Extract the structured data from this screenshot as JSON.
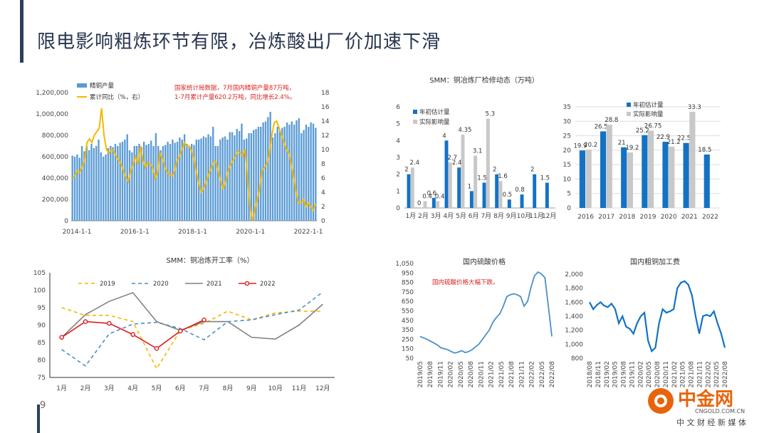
{
  "page": {
    "title": "限电影响粗炼环节有限，冶炼酸出厂价加速下滑",
    "page_number": "9"
  },
  "logo": {
    "name": "中金网",
    "site": "CNGOLD.COM.CN",
    "tagline": "中 文 财 经 新 媒 体",
    "icon": "cngold-logo-icon"
  },
  "colors": {
    "blue": "#5b9bd5",
    "darkblue": "#1372c4",
    "gold": "#f5b800",
    "gray": "#c8c8c8",
    "red": "#e01e1e",
    "line": "#4a90c8"
  },
  "chart_data": [
    {
      "id": "c1",
      "type": "bar+line",
      "title": "",
      "legend": [
        "精铜产量",
        "累计同比（%，右）"
      ],
      "annotation": "国家统计局数据，7月国内精铜产量87万吨，1-7月累计产量620.2万吨，同比增长2.4%。",
      "x_ticks": [
        "2014-1-1",
        "2016-1-1",
        "2018-1-1",
        "2020-1-1",
        "2022-1-1"
      ],
      "y_left_ticks": [
        "0",
        "200,000",
        "400,000",
        "600,000",
        "800,000",
        "1,000,000",
        "1,200,000"
      ],
      "y_right_ticks": [
        "0",
        "2",
        "4",
        "6",
        "8",
        "10",
        "12",
        "14",
        "16",
        "18"
      ],
      "ylim_left": [
        0,
        1200000
      ],
      "ylim_right": [
        0,
        18
      ],
      "bars": [
        610000,
        600000,
        620000,
        590000,
        700000,
        650000,
        700000,
        660000,
        720000,
        680000,
        700000,
        760000,
        640000,
        600000,
        620000,
        680000,
        700000,
        690000,
        720000,
        700000,
        730000,
        740000,
        760000,
        810000,
        660000,
        640000,
        700000,
        700000,
        720000,
        690000,
        740000,
        710000,
        720000,
        750000,
        700000,
        820000,
        700000,
        660000,
        700000,
        710000,
        740000,
        720000,
        760000,
        730000,
        740000,
        780000,
        760000,
        810000,
        720000,
        690000,
        720000,
        710000,
        760000,
        760000,
        770000,
        790000,
        780000,
        810000,
        790000,
        880000,
        700000,
        700000,
        760000,
        780000,
        790000,
        760000,
        830000,
        830000,
        800000,
        860000,
        840000,
        910000,
        760000,
        770000,
        820000,
        820000,
        850000,
        860000,
        880000,
        880000,
        920000,
        930000,
        970000,
        1020000,
        780000,
        820000,
        880000,
        850000,
        870000,
        880000,
        920000,
        900000,
        930000,
        900000,
        940000,
        960000,
        820000,
        850000,
        900000,
        880000,
        920000,
        910000,
        870000
      ],
      "line": [
        6,
        6.3,
        7,
        6.8,
        7.5,
        8.5,
        11,
        11.5,
        11,
        12,
        12.5,
        13,
        15.8,
        12,
        10,
        9.5,
        10,
        9.8,
        9,
        8.5,
        8,
        7,
        6,
        5.5,
        7,
        8,
        9,
        8,
        10.5,
        8.5,
        7.5,
        8.2,
        8,
        7.5,
        6,
        6.8,
        9.5,
        8.8,
        7.5,
        6.8,
        6.5,
        6.2,
        7,
        8.5,
        9,
        10,
        11,
        10.5,
        10.5,
        9.8,
        8.7,
        6.8,
        5.2,
        4,
        4.5,
        5.5,
        6.5,
        7.2,
        8.2,
        8.3,
        7,
        5.5,
        4.5,
        5.5,
        7,
        7.8,
        8.5,
        9,
        9.8,
        9.5,
        9.2,
        10,
        6,
        2,
        0,
        1.5,
        3,
        4.5,
        7,
        7.5,
        8,
        9.5,
        12,
        13.8,
        14,
        13,
        12,
        11,
        10,
        9.5,
        8,
        6,
        4,
        2.5,
        2.5,
        3,
        2,
        2.5,
        2,
        1.5,
        2.4
      ]
    },
    {
      "id": "c2",
      "type": "bar",
      "title": "SMM：铜冶炼厂检修动态（万吨）",
      "series": [
        {
          "name": "年初估计量",
          "values": [
            2,
            0,
            0.6,
            4,
            2.4,
            1,
            1.5,
            2,
            0.5,
            0.8,
            2,
            1.5
          ]
        },
        {
          "name": "实际影响量",
          "values": [
            2.4,
            0.4,
            0.4,
            2.7,
            4.35,
            3.1,
            5.3,
            1.6,
            null,
            null,
            null,
            null
          ]
        }
      ],
      "categories": [
        "1月",
        "2月",
        "3月",
        "4月",
        "5月",
        "6月",
        "7月",
        "8月",
        "9月",
        "10月",
        "11月",
        "12月"
      ],
      "y_ticks": [
        "0",
        "1",
        "2",
        "3",
        "4",
        "5",
        "6"
      ],
      "ylim": [
        0,
        6
      ]
    },
    {
      "id": "c3",
      "type": "bar",
      "title": "",
      "series": [
        {
          "name": "年初估计量",
          "values": [
            19.9,
            26.5,
            21,
            25.2,
            22.9,
            22.5,
            18.5
          ]
        },
        {
          "name": "实际影响量",
          "values": [
            20.2,
            28.8,
            19.2,
            26.75,
            21.2,
            33.3,
            null
          ]
        }
      ],
      "categories": [
        "2016",
        "2017",
        "2018",
        "2019",
        "2020",
        "2021",
        "2022"
      ],
      "y_ticks": [
        "0",
        "5",
        "10",
        "15",
        "20",
        "25",
        "30",
        "35"
      ],
      "ylim": [
        0,
        35
      ]
    },
    {
      "id": "c4",
      "type": "line",
      "title": "SMM：铜冶炼开工率（%）",
      "categories": [
        "1月",
        "2月",
        "3月",
        "4月",
        "5月",
        "6月",
        "7月",
        "8月",
        "9月",
        "10月",
        "11月",
        "12月"
      ],
      "y_ticks": [
        "75",
        "80",
        "85",
        "90",
        "95",
        "100",
        "105"
      ],
      "ylim": [
        75,
        105
      ],
      "series": [
        {
          "name": "2019",
          "values": [
            95,
            92.8,
            92.8,
            91,
            77.5,
            88.5,
            90.5,
            94,
            91.5,
            93.5,
            94,
            94
          ]
        },
        {
          "name": "2020",
          "values": [
            83,
            78.3,
            87.5,
            90.3,
            90.8,
            89,
            85.8,
            91,
            91.5,
            93,
            94.3,
            99.5
          ]
        },
        {
          "name": "2021",
          "values": [
            86.5,
            93,
            96.8,
            99.3,
            91,
            88.5,
            91,
            91,
            86.5,
            86,
            90,
            96
          ]
        },
        {
          "name": "2022",
          "values": [
            86.5,
            91,
            90.5,
            87.3,
            83.3,
            88.3,
            91.5,
            null,
            null,
            null,
            null,
            null
          ]
        }
      ]
    },
    {
      "id": "c5",
      "type": "line",
      "title": "国内硫酸价格",
      "annotation": "国内硫酸价格大幅下跌。",
      "x_ticks": [
        "2019/05",
        "2019/08",
        "2019/11",
        "2020/02",
        "2020/05",
        "2020/08",
        "2020/11",
        "2021/02",
        "2021/05",
        "2021/08",
        "2021/11",
        "2022/02",
        "2022/05",
        "2022/08"
      ],
      "y_ticks": [
        "50",
        "150",
        "250",
        "350",
        "450",
        "550",
        "650",
        "750",
        "850",
        "950",
        "1,050"
      ],
      "ylim": [
        50,
        1050
      ],
      "values": [
        280,
        265,
        250,
        230,
        210,
        190,
        160,
        150,
        140,
        120,
        105,
        115,
        130,
        110,
        120,
        140,
        170,
        200,
        250,
        300,
        350,
        430,
        480,
        520,
        600,
        700,
        720,
        730,
        720,
        700,
        600,
        650,
        800,
        920,
        960,
        940,
        900,
        600,
        280
      ]
    },
    {
      "id": "c6",
      "type": "line",
      "title": "国内粗铜加工费",
      "x_ticks": [
        "2018/08",
        "2018/11",
        "2019/02",
        "2019/05",
        "2019/08",
        "2019/11",
        "2020/02",
        "2020/05",
        "2020/08",
        "2020/11",
        "2021/02",
        "2021/05",
        "2021/08",
        "2021/11",
        "2022/02",
        "2022/05",
        "2022/08"
      ],
      "y_ticks": [
        "800",
        "1,000",
        "1,200",
        "1,400",
        "1,600",
        "1,800",
        "2,000"
      ],
      "ylim": [
        800,
        2000
      ],
      "values": [
        1600,
        1500,
        1560,
        1600,
        1550,
        1530,
        1580,
        1500,
        1300,
        1400,
        1250,
        1220,
        1150,
        1300,
        1400,
        1450,
        1050,
        900,
        950,
        1300,
        1500,
        1450,
        1470,
        1500,
        1800,
        1880,
        1900,
        1850,
        1700,
        1400,
        1150,
        1400,
        1420,
        1400,
        1470,
        1300,
        1150,
        950
      ]
    }
  ]
}
